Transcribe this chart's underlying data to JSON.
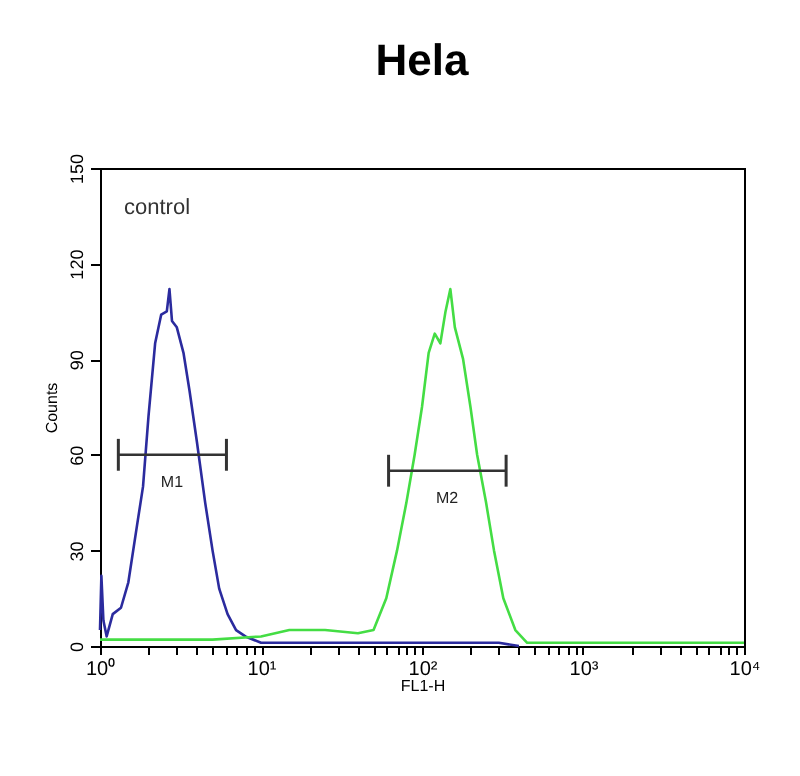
{
  "chart_data": {
    "type": "line",
    "title": "Hela",
    "xlabel": "FL1-H",
    "ylabel": "Counts",
    "log": "x",
    "grid": false,
    "marker": "none",
    "line_style": "solid",
    "xlim": [
      1,
      10000
    ],
    "ylim": [
      0,
      150
    ],
    "xticks": [
      {
        "value": 1,
        "label": "10⁰"
      },
      {
        "value": 2,
        "label": null
      },
      {
        "value": 3,
        "label": null
      },
      {
        "value": 4,
        "label": null
      },
      {
        "value": 5,
        "label": null
      },
      {
        "value": 6,
        "label": null
      },
      {
        "value": 7,
        "label": null
      },
      {
        "value": 8,
        "label": null
      },
      {
        "value": 9,
        "label": null
      },
      {
        "value": 10,
        "label": "10¹"
      },
      {
        "value": 20,
        "label": null
      },
      {
        "value": 30,
        "label": null
      },
      {
        "value": 40,
        "label": null
      },
      {
        "value": 50,
        "label": null
      },
      {
        "value": 60,
        "label": null
      },
      {
        "value": 70,
        "label": null
      },
      {
        "value": 80,
        "label": null
      },
      {
        "value": 90,
        "label": null
      },
      {
        "value": 100,
        "label": "10²"
      },
      {
        "value": 200,
        "label": null
      },
      {
        "value": 300,
        "label": null
      },
      {
        "value": 400,
        "label": null
      },
      {
        "value": 500,
        "label": null
      },
      {
        "value": 600,
        "label": null
      },
      {
        "value": 700,
        "label": null
      },
      {
        "value": 800,
        "label": null
      },
      {
        "value": 900,
        "label": null
      },
      {
        "value": 1000,
        "label": "10³"
      },
      {
        "value": 2000,
        "label": null
      },
      {
        "value": 3000,
        "label": null
      },
      {
        "value": 4000,
        "label": null
      },
      {
        "value": 5000,
        "label": null
      },
      {
        "value": 6000,
        "label": null
      },
      {
        "value": 7000,
        "label": null
      },
      {
        "value": 8000,
        "label": null
      },
      {
        "value": 9000,
        "label": null
      },
      {
        "value": 10000,
        "label": "10⁴"
      }
    ],
    "yticks": [
      0,
      30,
      60,
      90,
      120,
      150
    ],
    "series": [
      {
        "color": "#2b2b9e",
        "x": [
          1.0,
          1.02,
          1.05,
          1.1,
          1.2,
          1.35,
          1.5,
          1.7,
          1.85,
          2.0,
          2.2,
          2.4,
          2.6,
          2.7,
          2.8,
          3.0,
          3.3,
          3.6,
          4.0,
          4.5,
          5.0,
          5.5,
          6.2,
          7,
          8,
          10,
          20,
          50,
          100,
          300,
          400
        ],
        "values": [
          5,
          22,
          8,
          3,
          10,
          12,
          20,
          38,
          50,
          72,
          95,
          104,
          105,
          112,
          102,
          100,
          92,
          80,
          64,
          45,
          30,
          18,
          10,
          5,
          3,
          1,
          1,
          1,
          1,
          1,
          0
        ]
      },
      {
        "color": "#44dd44",
        "x": [
          1.0,
          5,
          10,
          15,
          25,
          40,
          50,
          60,
          70,
          80,
          90,
          100,
          110,
          120,
          130,
          140,
          150,
          160,
          180,
          200,
          220,
          250,
          280,
          320,
          380,
          450,
          1000,
          10000
        ],
        "values": [
          2,
          2,
          3,
          5,
          5,
          4,
          5,
          15,
          30,
          45,
          60,
          75,
          92,
          98,
          95,
          105,
          112,
          100,
          90,
          75,
          60,
          45,
          30,
          15,
          5,
          1,
          1,
          1
        ]
      },
      {
        "color": "#333333",
        "x": [
          1.3,
          2.8,
          6.1
        ],
        "values": [
          60,
          60,
          60
        ],
        "errors": [
          5,
          null,
          5
        ]
      },
      {
        "color": "#333333",
        "x": [
          62,
          143,
          333
        ],
        "values": [
          55,
          55,
          55
        ],
        "errors": [
          5,
          null,
          5
        ]
      }
    ],
    "annotations": [
      "control",
      {
        "text": "M1",
        "x": 2.8,
        "y": 60
      },
      {
        "text": "M2",
        "x": 143,
        "y": 55
      }
    ]
  }
}
